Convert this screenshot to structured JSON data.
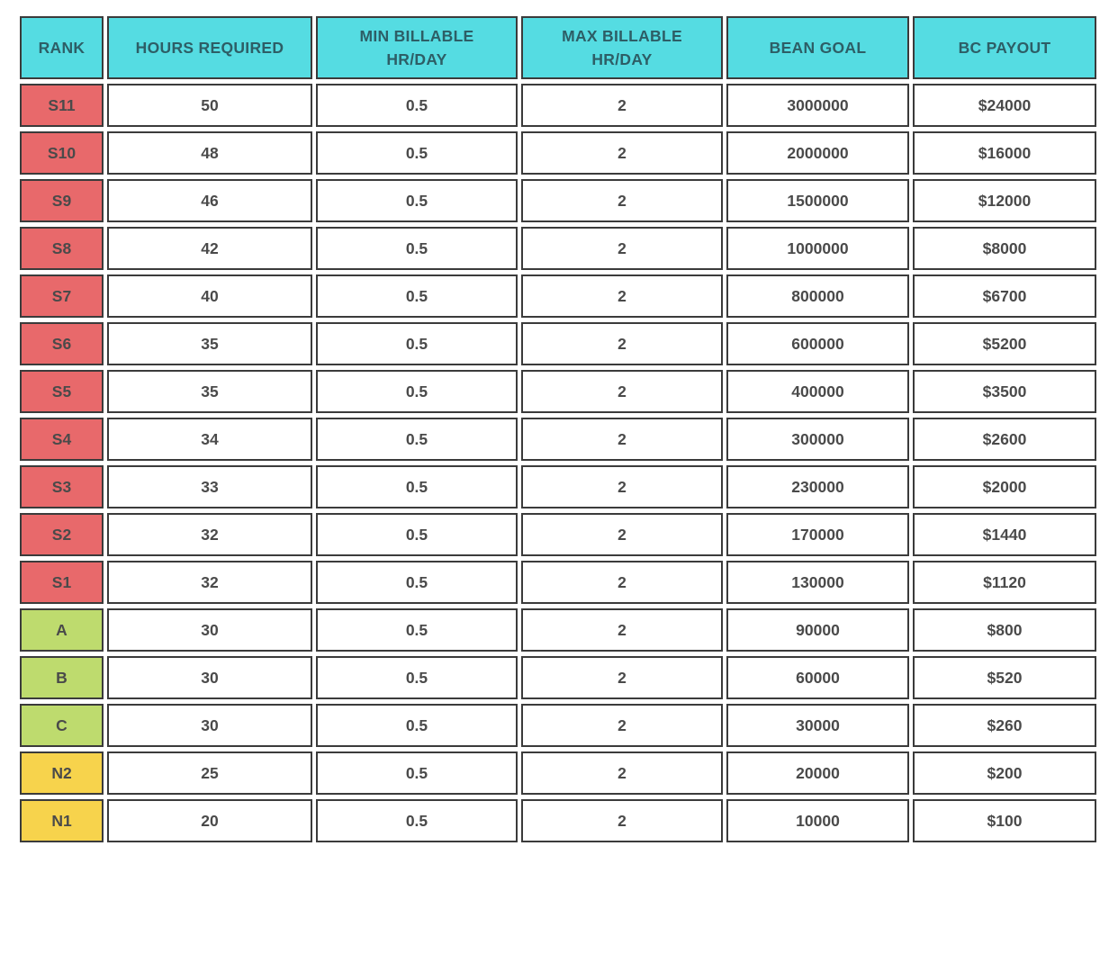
{
  "chart_data": {
    "type": "table",
    "columns": [
      "RANK",
      "HOURS REQUIRED",
      "MIN BILLABLE\nHR/DAY",
      "MAX BILLABLE\nHR/DAY",
      "BEAN GOAL",
      "BC PAYOUT"
    ],
    "rows": [
      {
        "rank": "S11",
        "tier": "s",
        "hours_required": "50",
        "min_billable_hr_day": "0.5",
        "max_billable_hr_day": "2",
        "bean_goal": "3000000",
        "bc_payout": "$24000"
      },
      {
        "rank": "S10",
        "tier": "s",
        "hours_required": "48",
        "min_billable_hr_day": "0.5",
        "max_billable_hr_day": "2",
        "bean_goal": "2000000",
        "bc_payout": "$16000"
      },
      {
        "rank": "S9",
        "tier": "s",
        "hours_required": "46",
        "min_billable_hr_day": "0.5",
        "max_billable_hr_day": "2",
        "bean_goal": "1500000",
        "bc_payout": "$12000"
      },
      {
        "rank": "S8",
        "tier": "s",
        "hours_required": "42",
        "min_billable_hr_day": "0.5",
        "max_billable_hr_day": "2",
        "bean_goal": "1000000",
        "bc_payout": "$8000"
      },
      {
        "rank": "S7",
        "tier": "s",
        "hours_required": "40",
        "min_billable_hr_day": "0.5",
        "max_billable_hr_day": "2",
        "bean_goal": "800000",
        "bc_payout": "$6700"
      },
      {
        "rank": "S6",
        "tier": "s",
        "hours_required": "35",
        "min_billable_hr_day": "0.5",
        "max_billable_hr_day": "2",
        "bean_goal": "600000",
        "bc_payout": "$5200"
      },
      {
        "rank": "S5",
        "tier": "s",
        "hours_required": "35",
        "min_billable_hr_day": "0.5",
        "max_billable_hr_day": "2",
        "bean_goal": "400000",
        "bc_payout": "$3500"
      },
      {
        "rank": "S4",
        "tier": "s",
        "hours_required": "34",
        "min_billable_hr_day": "0.5",
        "max_billable_hr_day": "2",
        "bean_goal": "300000",
        "bc_payout": "$2600"
      },
      {
        "rank": "S3",
        "tier": "s",
        "hours_required": "33",
        "min_billable_hr_day": "0.5",
        "max_billable_hr_day": "2",
        "bean_goal": "230000",
        "bc_payout": "$2000"
      },
      {
        "rank": "S2",
        "tier": "s",
        "hours_required": "32",
        "min_billable_hr_day": "0.5",
        "max_billable_hr_day": "2",
        "bean_goal": "170000",
        "bc_payout": "$1440"
      },
      {
        "rank": "S1",
        "tier": "s",
        "hours_required": "32",
        "min_billable_hr_day": "0.5",
        "max_billable_hr_day": "2",
        "bean_goal": "130000",
        "bc_payout": "$1120"
      },
      {
        "rank": "A",
        "tier": "abc",
        "hours_required": "30",
        "min_billable_hr_day": "0.5",
        "max_billable_hr_day": "2",
        "bean_goal": "90000",
        "bc_payout": "$800"
      },
      {
        "rank": "B",
        "tier": "abc",
        "hours_required": "30",
        "min_billable_hr_day": "0.5",
        "max_billable_hr_day": "2",
        "bean_goal": "60000",
        "bc_payout": "$520"
      },
      {
        "rank": "C",
        "tier": "abc",
        "hours_required": "30",
        "min_billable_hr_day": "0.5",
        "max_billable_hr_day": "2",
        "bean_goal": "30000",
        "bc_payout": "$260"
      },
      {
        "rank": "N2",
        "tier": "n",
        "hours_required": "25",
        "min_billable_hr_day": "0.5",
        "max_billable_hr_day": "2",
        "bean_goal": "20000",
        "bc_payout": "$200"
      },
      {
        "rank": "N1",
        "tier": "n",
        "hours_required": "20",
        "min_billable_hr_day": "0.5",
        "max_billable_hr_day": "2",
        "bean_goal": "10000",
        "bc_payout": "$100"
      }
    ],
    "layout": {
      "grid": "separated-cells",
      "legend_position": "none"
    }
  },
  "colors": {
    "header_bg": "#55DCE2",
    "header_text": "#2D5E66",
    "tier_s": "#E8696B",
    "tier_abc": "#BEDB6E",
    "tier_n": "#F7D34C",
    "border": "#3B3B3B",
    "cell_text": "#4A4A4A",
    "page_bg": "#FFFFFF"
  }
}
